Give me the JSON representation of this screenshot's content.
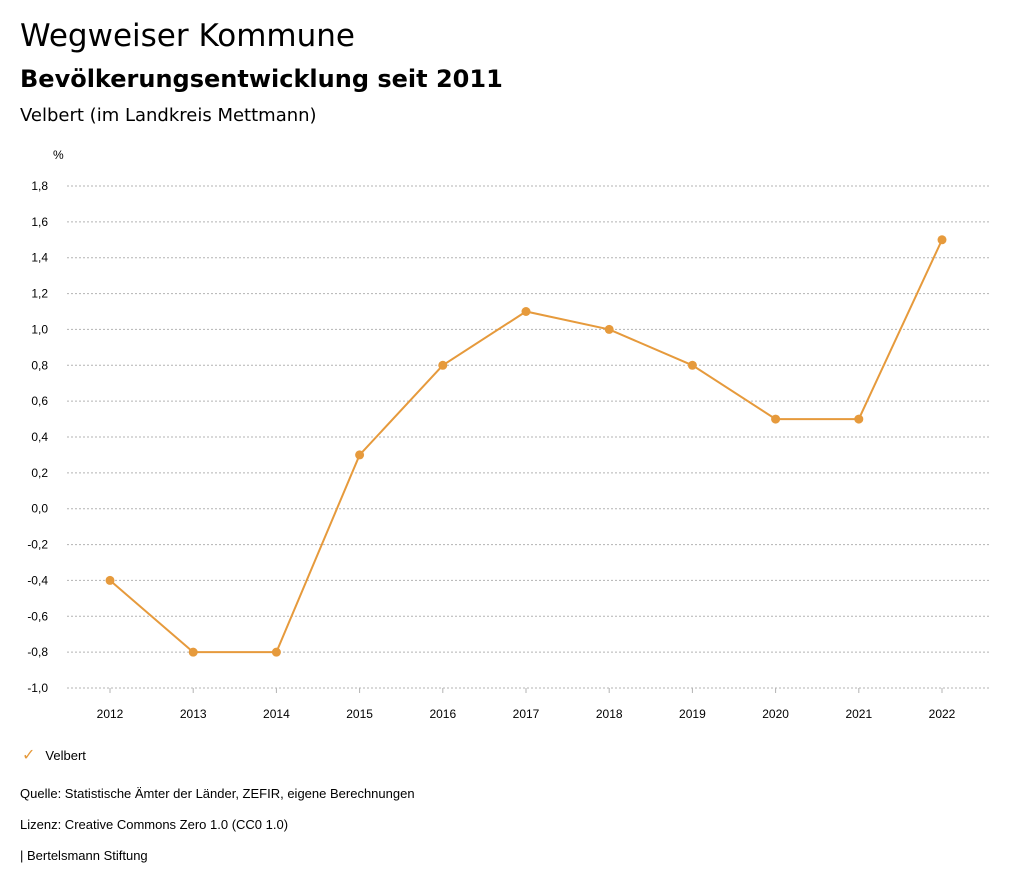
{
  "header": {
    "title": "Wegweiser Kommune",
    "subtitle": "Bevölkerungsentwicklung seit 2011",
    "region": "Velbert (im Landkreis Mettmann)"
  },
  "chart_data": {
    "type": "line",
    "ylabel": "%",
    "x": [
      "2012",
      "2013",
      "2014",
      "2015",
      "2016",
      "2017",
      "2018",
      "2019",
      "2020",
      "2021",
      "2022"
    ],
    "series": [
      {
        "name": "Velbert",
        "color": "#e69a3c",
        "values": [
          -0.4,
          -0.8,
          -0.8,
          0.3,
          0.8,
          1.1,
          1.0,
          0.8,
          0.5,
          0.5,
          1.5
        ]
      }
    ],
    "ylim": [
      -1.0,
      1.8
    ],
    "yticks": [
      "-1,0",
      "-0,8",
      "-0,6",
      "-0,4",
      "-0,2",
      "0,0",
      "0,2",
      "0,4",
      "0,6",
      "0,8",
      "1,0",
      "1,2",
      "1,4",
      "1,6",
      "1,8"
    ],
    "grid": true,
    "legend_position": "bottom-left"
  },
  "footer": {
    "source": "Quelle: Statistische Ämter der Länder, ZEFIR, eigene Berechnungen",
    "license": "Lizenz: Creative Commons Zero 1.0 (CC0 1.0)",
    "publisher": "| Bertelsmann Stiftung"
  }
}
